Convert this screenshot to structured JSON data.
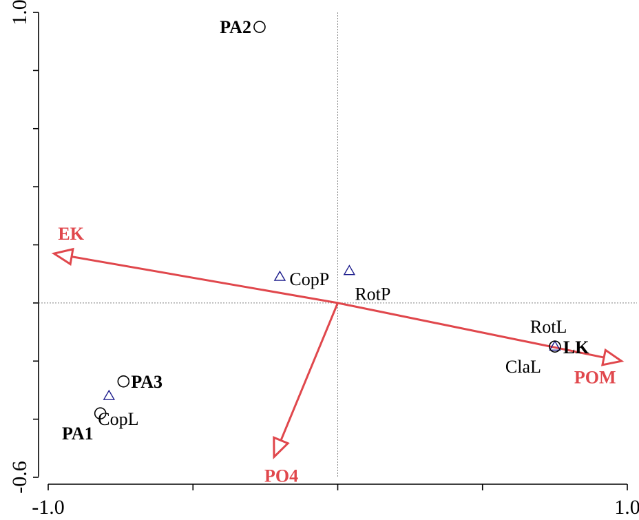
{
  "chart_data": {
    "type": "scatter",
    "title": "",
    "xlabel": "",
    "ylabel": "",
    "xlim": [
      -1.0,
      1.0
    ],
    "ylim": [
      -0.6,
      1.0
    ],
    "x_tick_labels": [
      "-1.0",
      "1.0"
    ],
    "y_tick_labels": [
      "-0.6",
      "1.0"
    ],
    "reference_lines": [
      0,
      0
    ],
    "colors": {
      "axes": "#000000",
      "reference": "#808080",
      "arrows": "#e0474c",
      "site_marker": "#000000",
      "species_marker": "#1c1c8c"
    },
    "sites": [
      {
        "label": "PA2",
        "x": -0.27,
        "y": 0.95
      },
      {
        "label": "PA3",
        "x": -0.74,
        "y": -0.27
      },
      {
        "label": "PA1",
        "x": -0.82,
        "y": -0.38
      },
      {
        "label": "LK",
        "x": 0.75,
        "y": -0.15
      }
    ],
    "species": [
      {
        "label": "CopP",
        "x": -0.2,
        "y": 0.09
      },
      {
        "label": "RotP",
        "x": 0.04,
        "y": 0.11
      },
      {
        "label": "CopL",
        "x": -0.79,
        "y": -0.32
      },
      {
        "label": "RotL",
        "x": 0.75,
        "y": -0.15
      },
      {
        "label": "ClaL",
        "x": 0.75,
        "y": -0.15
      }
    ],
    "environmental_vectors": [
      {
        "label": "EK",
        "x": -0.98,
        "y": 0.17
      },
      {
        "label": "POM",
        "x": 0.98,
        "y": -0.2
      },
      {
        "label": "PO4",
        "x": -0.22,
        "y": -0.53
      }
    ]
  }
}
